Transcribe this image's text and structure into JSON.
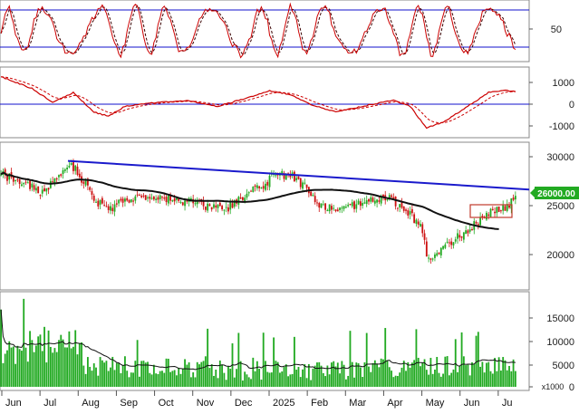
{
  "chart_data": [
    {
      "type": "line",
      "panel": "stochastic",
      "ylim": [
        0,
        100
      ],
      "y_ticks": [
        {
          "value": 50,
          "label": "50"
        }
      ],
      "reference_lines": [
        80,
        20
      ],
      "colors": {
        "k": "#cc0000",
        "d": "#3a0000",
        "reference": "#1010cc"
      }
    },
    {
      "type": "line",
      "panel": "macd",
      "ylim": [
        -1700,
        1700
      ],
      "y_ticks": [
        {
          "value": 1000,
          "label": "1000"
        },
        {
          "value": 0,
          "label": "0"
        },
        {
          "value": -1000,
          "label": "-1000"
        }
      ],
      "reference_lines": [
        0
      ],
      "colors": {
        "macd": "#cc0000",
        "signal": "#cc0000",
        "reference": "#1010cc"
      }
    },
    {
      "type": "candlestick",
      "panel": "price",
      "ylim": [
        16500,
        31500
      ],
      "y_ticks": [
        {
          "value": 30000,
          "label": "30000"
        },
        {
          "value": 25000,
          "label": "25000"
        },
        {
          "value": 20000,
          "label": "20000"
        }
      ],
      "last_price_label": "26000.00",
      "last_price_value": 26000,
      "trendline": {
        "start": 29600,
        "end": 26700,
        "color": "#1a1acc"
      },
      "ma_color": "#111111",
      "colors": {
        "up": "#22aa22",
        "down": "#cc1111",
        "tag": "#22aa22",
        "box": "#c0392b"
      }
    },
    {
      "type": "bar",
      "panel": "volume",
      "ylim": [
        0,
        20000
      ],
      "y_ticks": [
        {
          "value": 15000,
          "label": "15000"
        },
        {
          "value": 10000,
          "label": "10000"
        },
        {
          "value": 5000,
          "label": "5000"
        },
        {
          "value": 0,
          "label": "0"
        }
      ],
      "unit_label": "x1000",
      "colors": {
        "bar": "#22aa22",
        "ma": "#111111"
      }
    }
  ],
  "x_axis": {
    "months": [
      "Jun",
      "Jul",
      "Aug",
      "Sep",
      "Oct",
      "Nov",
      "Dec",
      "2025",
      "Feb",
      "Mar",
      "Apr",
      "May",
      "Jun",
      "Ju"
    ]
  }
}
